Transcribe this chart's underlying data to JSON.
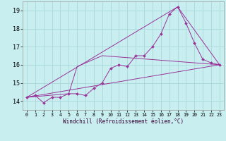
{
  "xlabel": "Windchill (Refroidissement éolien,°C)",
  "bg_color": "#c8eef0",
  "grid_color": "#a8d8da",
  "line_color": "#993399",
  "xlim": [
    -0.5,
    23.5
  ],
  "ylim": [
    13.5,
    19.5
  ],
  "xticks": [
    0,
    1,
    2,
    3,
    4,
    5,
    6,
    7,
    8,
    9,
    10,
    11,
    12,
    13,
    14,
    15,
    16,
    17,
    18,
    19,
    20,
    21,
    22,
    23
  ],
  "yticks": [
    14,
    15,
    16,
    17,
    18,
    19
  ],
  "line1_x": [
    0,
    1,
    2,
    3,
    4,
    5,
    6,
    7,
    8,
    9,
    10,
    11,
    12,
    13,
    14,
    15,
    16,
    17,
    18,
    19,
    20,
    21,
    22,
    23
  ],
  "line1_y": [
    14.2,
    14.3,
    13.9,
    14.2,
    14.2,
    14.4,
    14.4,
    14.3,
    14.7,
    15.0,
    15.8,
    16.0,
    15.9,
    16.5,
    16.5,
    17.0,
    17.7,
    18.8,
    19.2,
    18.3,
    17.2,
    16.3,
    16.1,
    16.0
  ],
  "line2_x": [
    0,
    5,
    6,
    9,
    23
  ],
  "line2_y": [
    14.2,
    14.4,
    15.9,
    16.5,
    16.0
  ],
  "line3_x": [
    0,
    23
  ],
  "line3_y": [
    14.2,
    16.0
  ],
  "line4_x": [
    0,
    18,
    23
  ],
  "line4_y": [
    14.2,
    19.2,
    16.0
  ],
  "marker_size": 2.0,
  "line_width": 0.7,
  "xlabel_fontsize": 5.5,
  "xtick_fontsize": 4.8,
  "ytick_fontsize": 6.0
}
